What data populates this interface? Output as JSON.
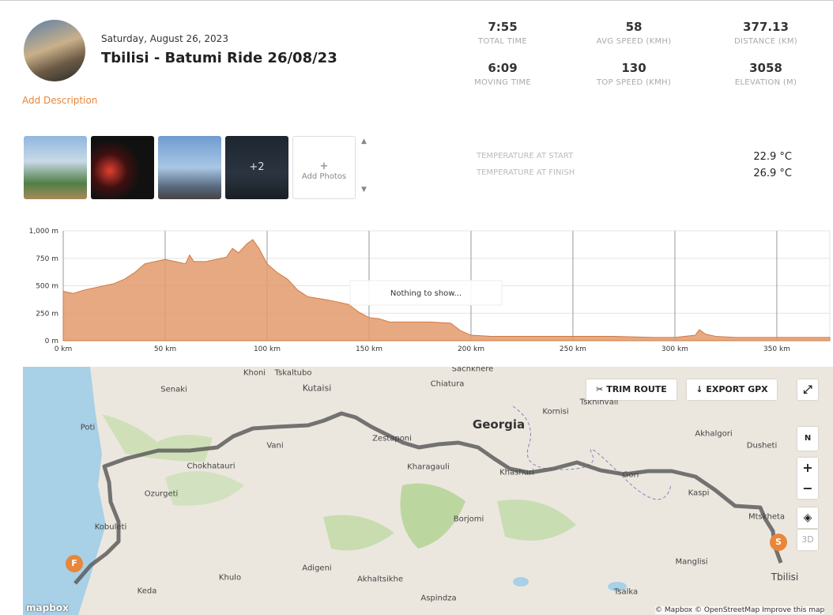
{
  "header": {
    "date": "Saturday, August 26, 2023",
    "title": "Tbilisi - Batumi Ride 26/08/23",
    "add_description": "Add Description"
  },
  "stats": [
    {
      "value": "7:55",
      "label": "TOTAL TIME"
    },
    {
      "value": "58",
      "label": "AVG SPEED (KMH)"
    },
    {
      "value": "377.13",
      "label": "DISTANCE (KM)"
    },
    {
      "value": "6:09",
      "label": "MOVING TIME"
    },
    {
      "value": "130",
      "label": "TOP SPEED (KMH)"
    },
    {
      "value": "3058",
      "label": "ELEVATION (M)"
    }
  ],
  "photos": {
    "more": "+2",
    "add": "Add Photos"
  },
  "temperature": [
    {
      "label": "TEMPERATURE AT START",
      "value": "22.9 °C"
    },
    {
      "label": "TEMPERATURE AT FINISH",
      "value": "26.9 °C"
    }
  ],
  "chart_data": {
    "type": "area",
    "color": "#e39a6b",
    "annotation": "Nothing to show...",
    "x": [
      0,
      5,
      10,
      20,
      25,
      30,
      35,
      40,
      45,
      50,
      55,
      60,
      62,
      64,
      70,
      80,
      83,
      86,
      90,
      93,
      96,
      100,
      105,
      110,
      115,
      120,
      130,
      140,
      145,
      150,
      155,
      160,
      170,
      180,
      190,
      195,
      200,
      210,
      230,
      250,
      270,
      290,
      300,
      310,
      312,
      315,
      320,
      330,
      350,
      376
    ],
    "values": [
      450,
      430,
      460,
      500,
      520,
      560,
      620,
      700,
      720,
      740,
      720,
      700,
      780,
      720,
      720,
      760,
      840,
      800,
      880,
      920,
      840,
      700,
      620,
      560,
      460,
      400,
      370,
      330,
      260,
      210,
      200,
      170,
      170,
      170,
      160,
      90,
      50,
      40,
      40,
      40,
      40,
      30,
      30,
      50,
      100,
      60,
      40,
      30,
      30,
      30
    ],
    "xlim": [
      0,
      376
    ],
    "ylim": [
      0,
      1000
    ],
    "xticks": [
      {
        "value": 0,
        "label": "0 km"
      },
      {
        "value": 50,
        "label": "50 km"
      },
      {
        "value": 100,
        "label": "100 km"
      },
      {
        "value": 150,
        "label": "150 km"
      },
      {
        "value": 200,
        "label": "200 km"
      },
      {
        "value": 250,
        "label": "250 km"
      },
      {
        "value": 300,
        "label": "300 km"
      },
      {
        "value": 350,
        "label": "350 km"
      }
    ],
    "yticks": [
      {
        "value": 0,
        "label": "0 m"
      },
      {
        "value": 250,
        "label": "250 m"
      },
      {
        "value": 500,
        "label": "500 m"
      },
      {
        "value": 750,
        "label": "750 m"
      },
      {
        "value": 1000,
        "label": "1,000 m"
      }
    ],
    "grid": true
  },
  "map": {
    "labels": [
      "Khoni",
      "Tskaltubo",
      "Kutaisi",
      "Chiatura",
      "Sachkhere",
      "Senaki",
      "Poti",
      "Vani",
      "Zestaponi",
      "Georgia",
      "Kornisi",
      "Tskhinvali",
      "Akhalgori",
      "Dusheti",
      "Chokhatauri",
      "Kharagauli",
      "Khashuri",
      "Gori",
      "Kaspi",
      "Ozurgeti",
      "Borjomi",
      "Mtskheta",
      "Kobuleti",
      "Manglisi",
      "Tbilisi",
      "Adigeni",
      "Khulo",
      "Keda",
      "Akhaltsikhe",
      "Aspindza",
      "Tsalka"
    ],
    "trim": "TRIM ROUTE",
    "export": "EXPORT GPX",
    "north": "N",
    "zoom_in": "+",
    "zoom_out": "−",
    "three_d": "3D",
    "start": "S",
    "finish": "F",
    "logo": "mapbox",
    "attribution": "© Mapbox © OpenStreetMap Improve this map"
  }
}
